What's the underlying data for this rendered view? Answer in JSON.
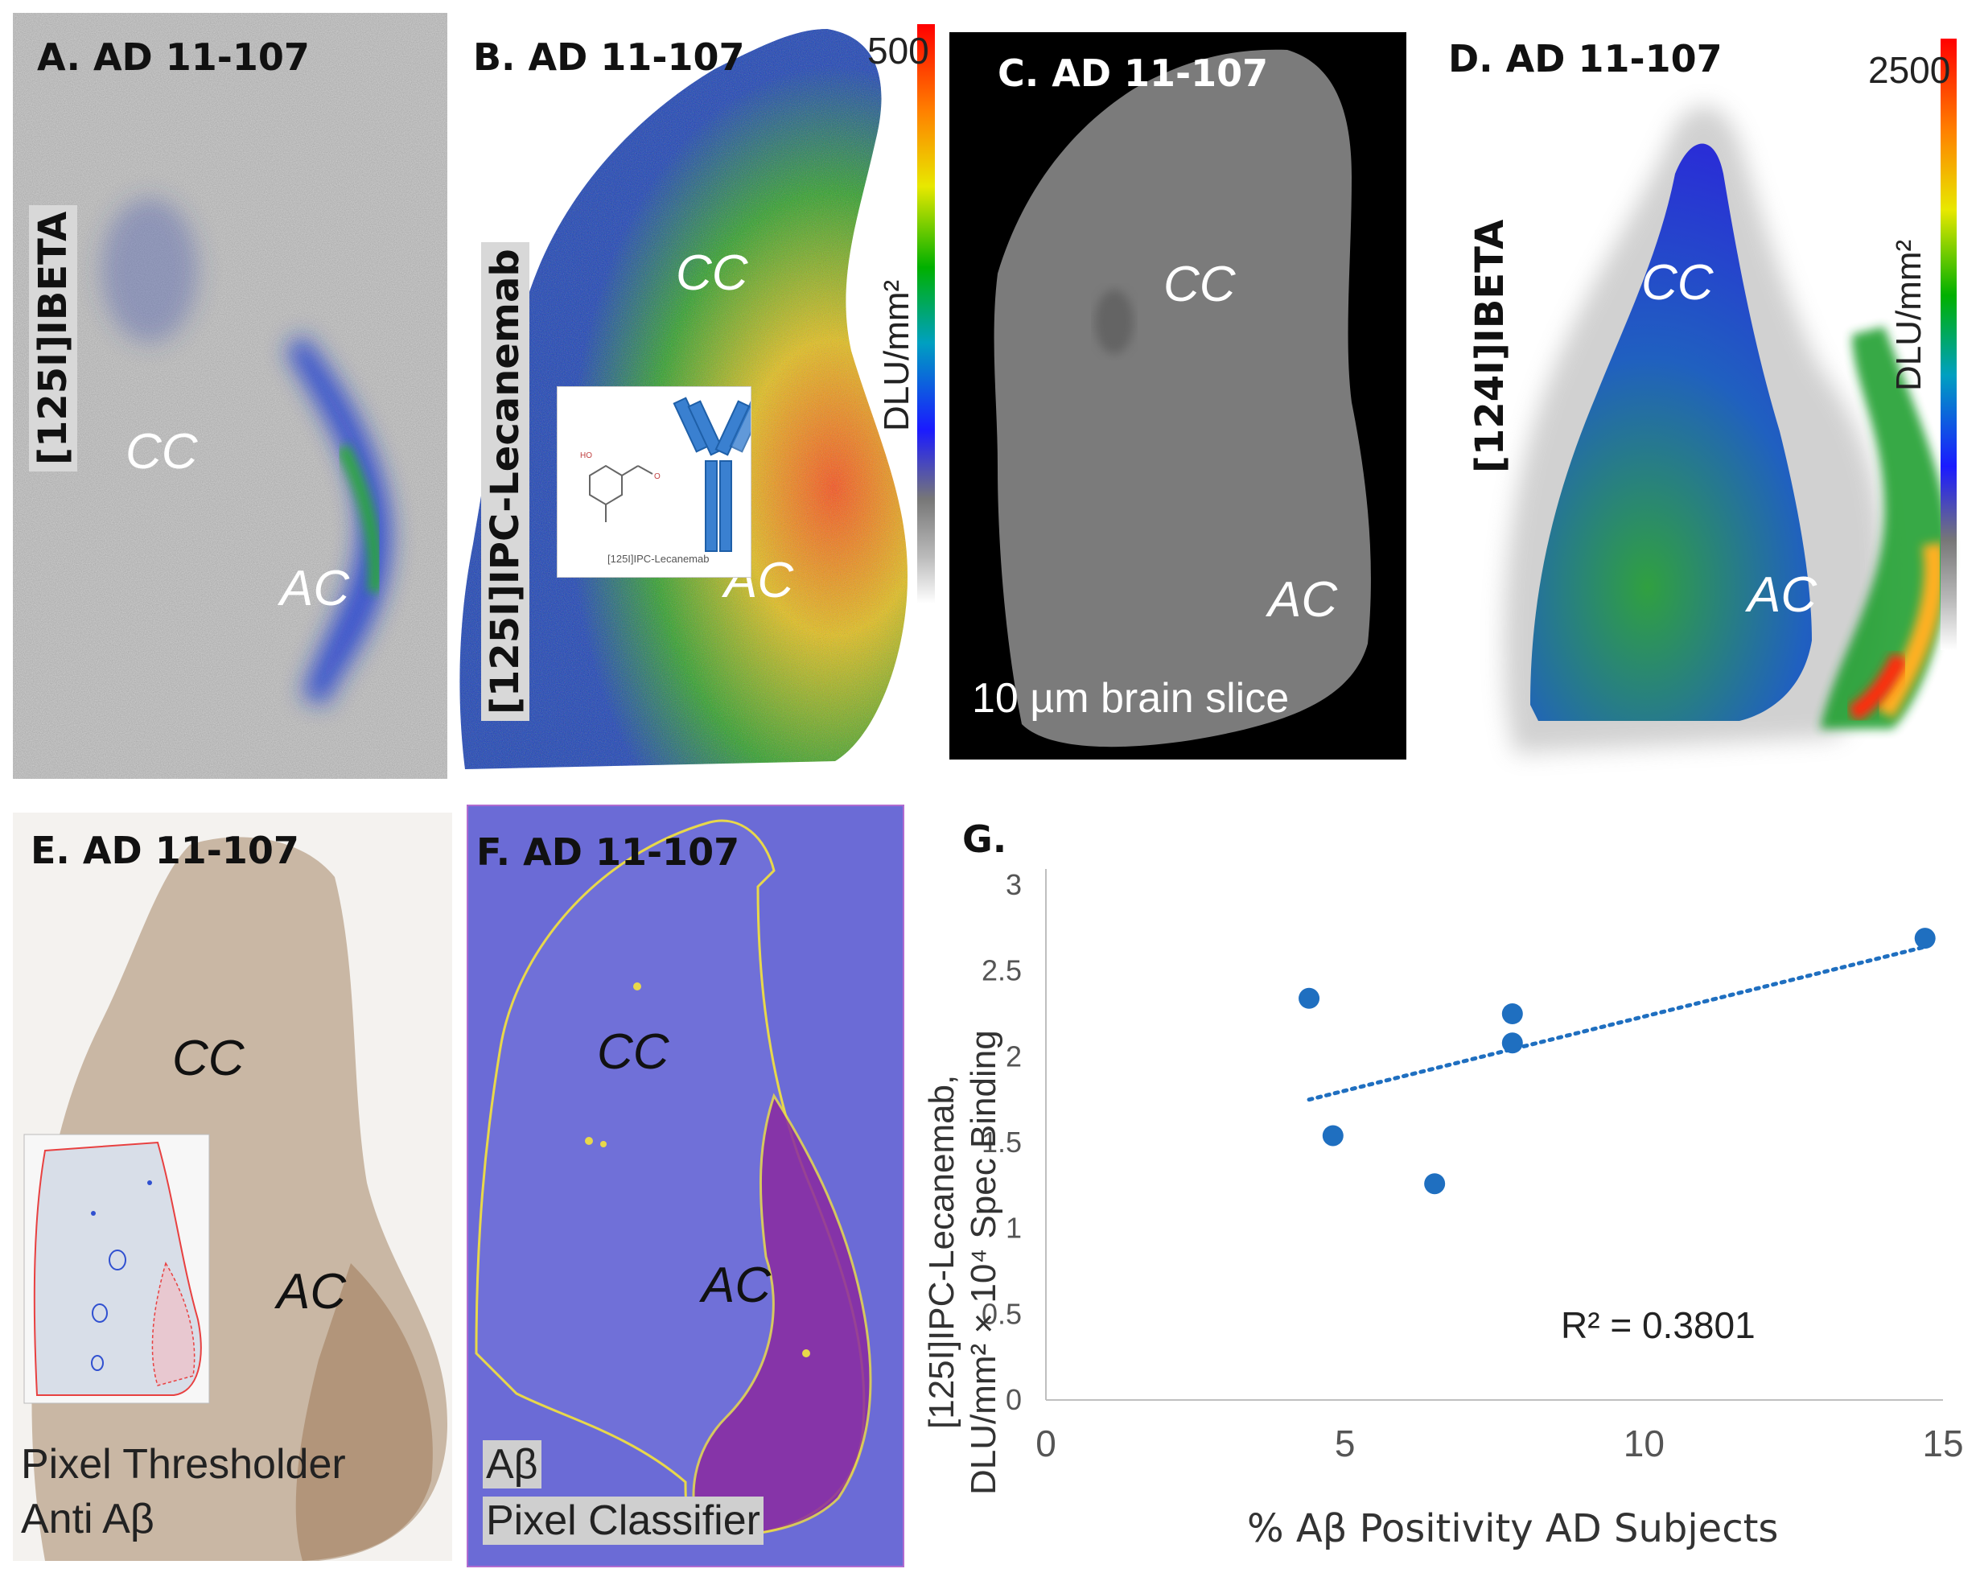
{
  "panel_a": {
    "title": "A. AD 11-107",
    "tracer": "[125I]IBETA",
    "regions": {
      "cc": "CC",
      "ac": "AC"
    }
  },
  "panel_b": {
    "title": "B. AD 11-107",
    "tracer": "[125I]IPC-Lecanemab",
    "scale_max": "500",
    "unit": "DLU/mm²",
    "inset_label": "[125I]IPC-Lecanemab",
    "regions": {
      "cc": "CC",
      "ac": "AC"
    }
  },
  "panel_c": {
    "title": "C. AD 11-107",
    "caption": "10 µm brain slice",
    "regions": {
      "cc": "CC",
      "ac": "AC"
    }
  },
  "panel_d": {
    "title": "D. AD 11-107",
    "tracer": "[124I]IBETA",
    "scale_max": "2500",
    "unit": "DLU/mm²",
    "regions": {
      "cc": "CC",
      "ac": "AC"
    }
  },
  "panel_e": {
    "title": "E. AD 11-107",
    "caption_line1": "Pixel Thresholder",
    "caption_line2": "Anti Aβ",
    "regions": {
      "cc": "CC",
      "ac": "AC"
    }
  },
  "panel_f": {
    "title": "F. AD 11-107",
    "caption_line1": "Aβ",
    "caption_line2": "Pixel Classifier",
    "regions": {
      "cc": "CC",
      "ac": "AC"
    }
  },
  "panel_g": {
    "title": "G."
  },
  "colors": {
    "series": "#1f6fc0",
    "f_background": "#6b6bd6",
    "f_outline": "#e8d84a"
  },
  "chart_data": {
    "type": "scatter",
    "xlabel": "% Aβ Positivity AD Subjects",
    "ylabel_line1": "[125I]IPC-Lecanemab,",
    "ylabel_line2": "DLU/mm² × 10⁴ Spec Binding",
    "xlim": [
      0,
      15
    ],
    "ylim": [
      0,
      3
    ],
    "x_ticks": [
      0,
      5,
      10,
      15
    ],
    "y_ticks": [
      0,
      0.5,
      1,
      1.5,
      2,
      2.5,
      3
    ],
    "grid": false,
    "points": [
      {
        "x": 4.4,
        "y": 2.34
      },
      {
        "x": 4.8,
        "y": 1.54
      },
      {
        "x": 6.5,
        "y": 1.26
      },
      {
        "x": 7.8,
        "y": 2.25
      },
      {
        "x": 7.8,
        "y": 2.08
      },
      {
        "x": 14.7,
        "y": 2.69
      }
    ],
    "trendline": {
      "style": "dotted",
      "x_start": 4.4,
      "y_start": 1.75,
      "x_end": 14.7,
      "y_end": 2.64
    },
    "annotation": "R² = 0.3801"
  }
}
